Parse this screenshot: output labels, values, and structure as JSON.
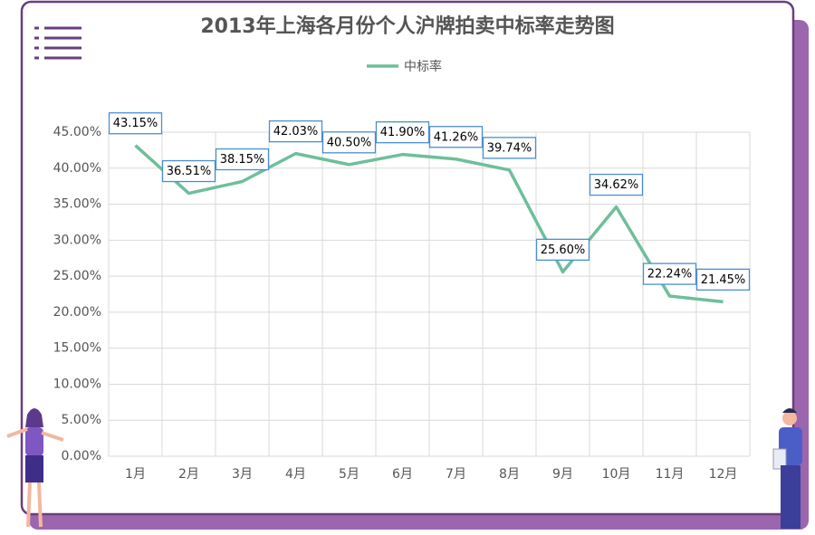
{
  "chart_data": {
    "type": "line",
    "title": "2013年上海各月份个人沪牌拍卖中标率走势图",
    "categories": [
      "1月",
      "2月",
      "3月",
      "4月",
      "5月",
      "6月",
      "7月",
      "8月",
      "9月",
      "10月",
      "11月",
      "12月"
    ],
    "series": [
      {
        "name": "中标率",
        "color": "#6dbf9a",
        "values": [
          43.15,
          36.51,
          38.15,
          42.03,
          40.5,
          41.9,
          41.26,
          39.74,
          25.6,
          34.62,
          22.24,
          21.45
        ],
        "value_labels": [
          "43.15%",
          "36.51%",
          "38.15%",
          "42.03%",
          "40.50%",
          "41.90%",
          "41.26%",
          "39.74%",
          "25.60%",
          "34.62%",
          "22.24%",
          "21.45%"
        ]
      }
    ],
    "ylim": [
      0,
      45
    ],
    "yticks": [
      {
        "value": 0,
        "label": "0.00%"
      },
      {
        "value": 5,
        "label": "5.00%"
      },
      {
        "value": 10,
        "label": "10.00%"
      },
      {
        "value": 15,
        "label": "15.00%"
      },
      {
        "value": 20,
        "label": "20.00%"
      },
      {
        "value": 25,
        "label": "25.00%"
      },
      {
        "value": 30,
        "label": "30.00%"
      },
      {
        "value": 35,
        "label": "35.00%"
      },
      {
        "value": 40,
        "label": "40.00%"
      },
      {
        "value": 45,
        "label": "45.00%"
      }
    ],
    "grid": true,
    "legend": "top"
  }
}
